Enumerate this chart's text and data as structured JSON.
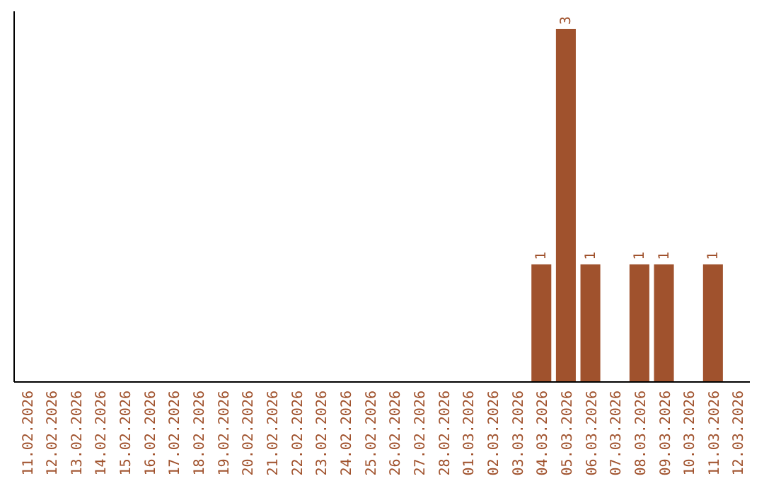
{
  "chart_data": {
    "type": "bar",
    "categories": [
      "11.02.2026",
      "12.02.2026",
      "13.02.2026",
      "14.02.2026",
      "15.02.2026",
      "16.02.2026",
      "17.02.2026",
      "18.02.2026",
      "19.02.2026",
      "20.02.2026",
      "21.02.2026",
      "22.02.2026",
      "23.02.2026",
      "24.02.2026",
      "25.02.2026",
      "26.02.2026",
      "27.02.2026",
      "28.02.2026",
      "01.03.2026",
      "02.03.2026",
      "03.03.2026",
      "04.03.2026",
      "05.03.2026",
      "06.03.2026",
      "07.03.2026",
      "08.03.2026",
      "09.03.2026",
      "10.03.2026",
      "11.03.2026",
      "12.03.2026"
    ],
    "values": [
      null,
      null,
      null,
      null,
      null,
      null,
      null,
      null,
      null,
      null,
      null,
      null,
      null,
      null,
      null,
      null,
      null,
      null,
      null,
      null,
      null,
      1,
      3,
      1,
      null,
      1,
      1,
      null,
      1,
      null
    ],
    "value_labels": [
      null,
      null,
      null,
      null,
      null,
      null,
      null,
      null,
      null,
      null,
      null,
      null,
      null,
      null,
      null,
      null,
      null,
      null,
      null,
      null,
      null,
      "1",
      "3",
      "1",
      null,
      "1",
      "1",
      null,
      "1",
      null
    ],
    "color": "#a0522d",
    "ylim": [
      0,
      3.15
    ],
    "tick_labels": "x"
  }
}
